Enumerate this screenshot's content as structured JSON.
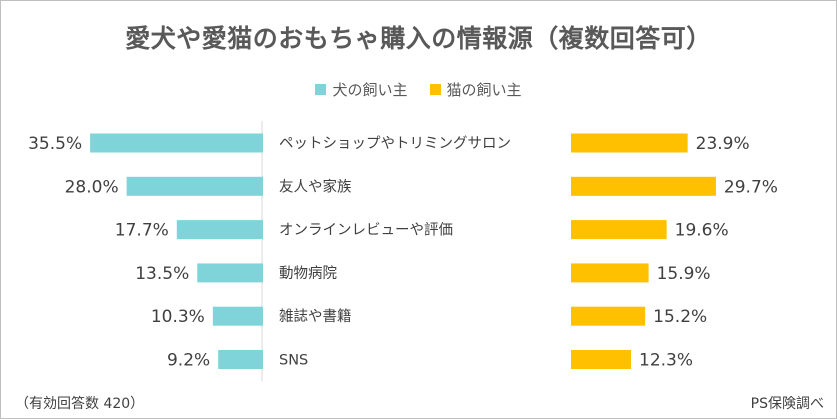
{
  "footnote": "（有効回答数 420）",
  "source": "PS保険調べ",
  "chart_data": {
    "type": "bar",
    "title": "愛犬や愛猫のおもちゃ購入の情報源（複数回答可）",
    "legend_position": "top",
    "categories": [
      "ペットショップやトリミングサロン",
      "友人や家族",
      "オンラインレビューや評価",
      "動物病院",
      "雑誌や書籍",
      "SNS"
    ],
    "series": [
      {
        "name": "犬の飼い主",
        "color": "#7fd4d9",
        "values": [
          35.5,
          28.0,
          17.7,
          13.5,
          10.3,
          9.2
        ],
        "labels": [
          "35.5%",
          "28.0%",
          "17.7%",
          "13.5%",
          "10.3%",
          "9.2%"
        ]
      },
      {
        "name": "猫の飼い主",
        "color": "#ffc000",
        "values": [
          23.9,
          29.7,
          19.6,
          15.9,
          15.2,
          12.3
        ],
        "labels": [
          "23.9%",
          "29.7%",
          "19.6%",
          "15.9%",
          "15.2%",
          "12.3%"
        ]
      }
    ],
    "unit": "%",
    "grid": false
  }
}
